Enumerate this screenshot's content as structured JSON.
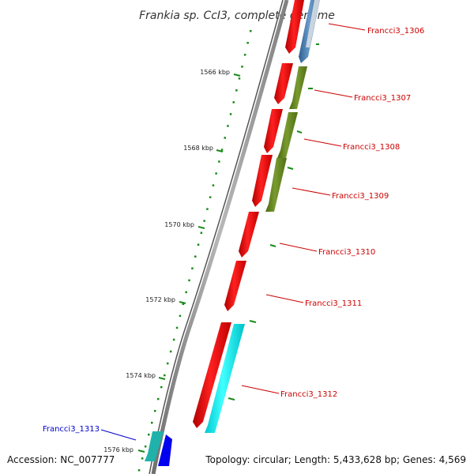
{
  "title": "Frankia sp. CcI3, complete genome",
  "footer": {
    "accession": "Accession: NC_007777",
    "summary": "Topology: circular; Length: 5,433,628 bp; Genes: 4,569"
  },
  "scale_ticks": [
    {
      "label": "1566 kbp"
    },
    {
      "label": "1568 kbp"
    },
    {
      "label": "1570 kbp"
    },
    {
      "label": "1572 kbp"
    },
    {
      "label": "1574 kbp"
    },
    {
      "label": "1576 kbp"
    }
  ],
  "gene_labels": [
    {
      "name": "Francci3_1306"
    },
    {
      "name": "Francci3_1307"
    },
    {
      "name": "Francci3_1308"
    },
    {
      "name": "Francci3_1309"
    },
    {
      "name": "Francci3_1310"
    },
    {
      "name": "Francci3_1311"
    },
    {
      "name": "Francci3_1312"
    },
    {
      "name": "Francci3_1313"
    }
  ],
  "colors": {
    "gene_red": "#ff0000",
    "gene_olive": "#6b8e23",
    "gene_cyan": "#00ffff",
    "gene_blue": "#0000ff",
    "gene_steelblue": "#4682b4",
    "gene_teal": "#20b2aa",
    "label_red": "#cc0000",
    "label_blue": "#0000cc",
    "tick_green": "#1a8a1a",
    "backbone": "#888888"
  }
}
